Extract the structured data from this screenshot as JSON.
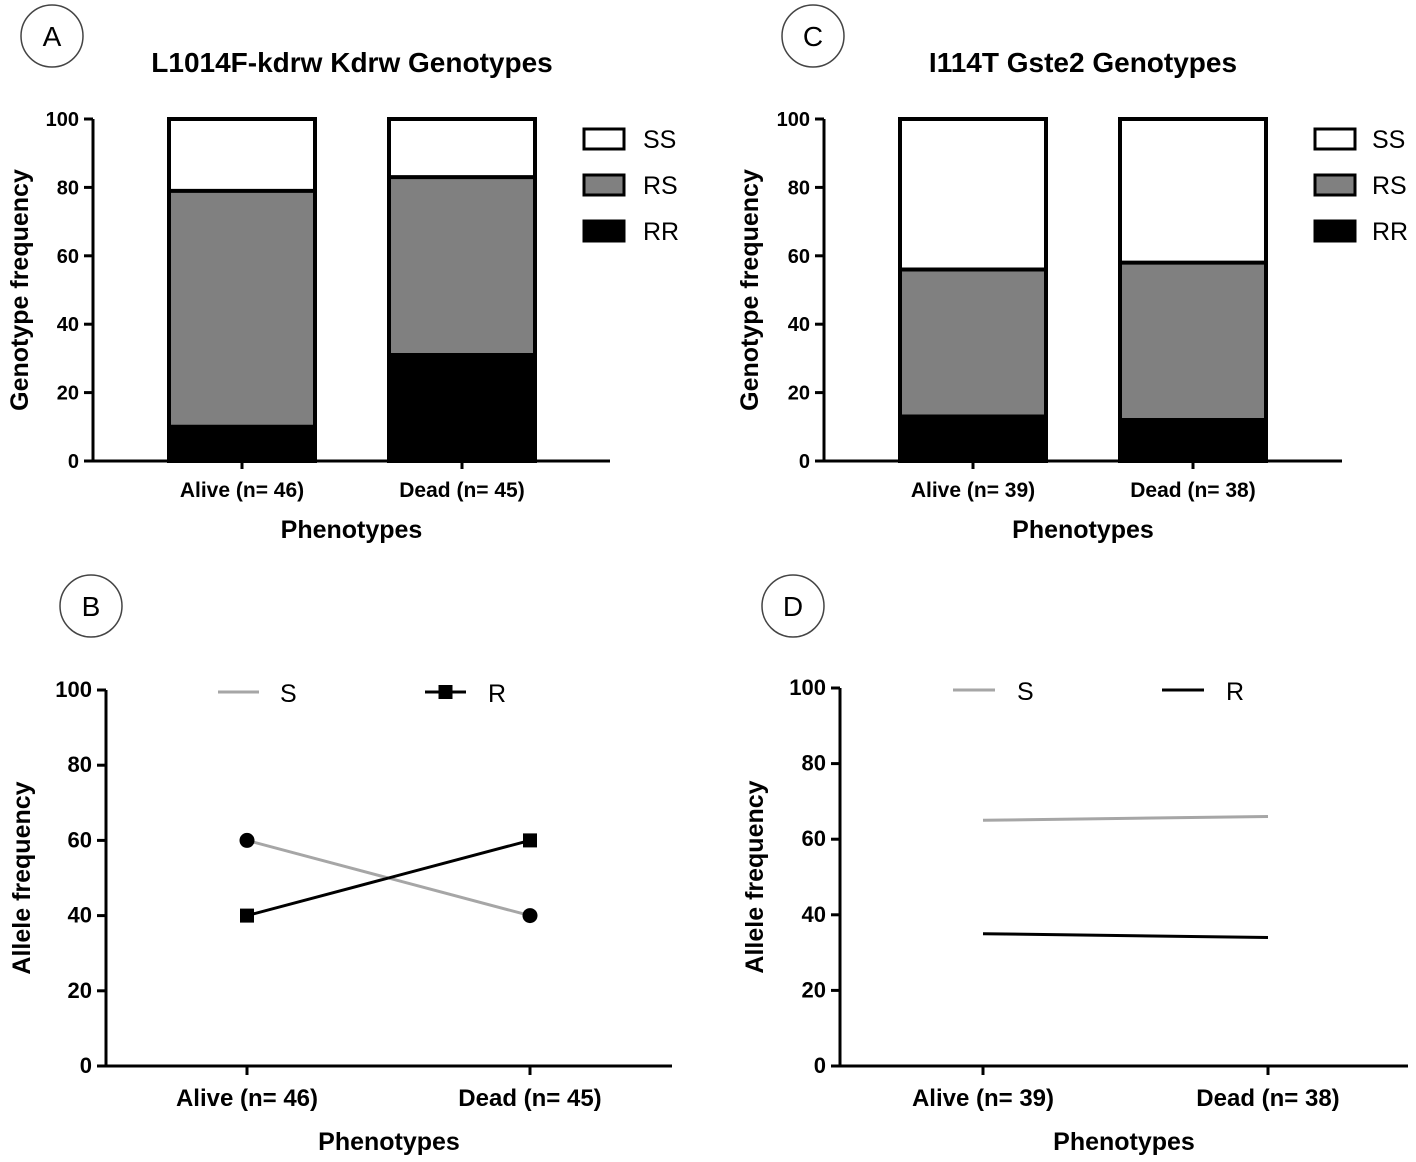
{
  "chart_data": [
    {
      "panel": "A",
      "type": "bar",
      "stacked": true,
      "title": "L1014F-kdrw Kdrw Genotypes",
      "xlabel": "Phenotypes",
      "ylabel": "Genotype frequency",
      "ylim": [
        0,
        100
      ],
      "yticks": [
        0,
        20,
        40,
        60,
        80,
        100
      ],
      "categories": [
        "Alive (n= 46)",
        "Dead  (n= 45)"
      ],
      "series": [
        {
          "name": "RR",
          "color": "#000000",
          "values": [
            10,
            31
          ]
        },
        {
          "name": "RS",
          "color": "#808080",
          "values": [
            69,
            52
          ]
        },
        {
          "name": "SS",
          "color": "#ffffff",
          "values": [
            21,
            17
          ]
        }
      ],
      "legend_order": [
        "SS",
        "RS",
        "RR"
      ],
      "legend_position": "top-right"
    },
    {
      "panel": "B",
      "type": "line",
      "xlabel": "Phenotypes",
      "ylabel": "Allele frequency",
      "ylim": [
        0,
        100
      ],
      "yticks": [
        0,
        20,
        40,
        60,
        80,
        100
      ],
      "categories": [
        "Alive (n= 46)",
        "Dead  (n= 45)"
      ],
      "series": [
        {
          "name": "S",
          "color": "#a6a6a6",
          "marker": "circle",
          "values": [
            60,
            40
          ]
        },
        {
          "name": "R",
          "color": "#000000",
          "marker": "square",
          "values": [
            40,
            60
          ]
        }
      ],
      "legend_position": "top"
    },
    {
      "panel": "C",
      "type": "bar",
      "stacked": true,
      "title": "I114T Gste2 Genotypes",
      "xlabel": "Phenotypes",
      "ylabel": "Genotype frequency",
      "ylim": [
        0,
        100
      ],
      "yticks": [
        0,
        20,
        40,
        60,
        80,
        100
      ],
      "categories": [
        "Alive (n= 39)",
        "Dead  (n= 38)"
      ],
      "series": [
        {
          "name": "RR",
          "color": "#000000",
          "values": [
            13,
            12
          ]
        },
        {
          "name": "RS",
          "color": "#808080",
          "values": [
            43,
            46
          ]
        },
        {
          "name": "SS",
          "color": "#ffffff",
          "values": [
            44,
            42
          ]
        }
      ],
      "legend_order": [
        "SS",
        "RS",
        "RR"
      ],
      "legend_position": "top-right"
    },
    {
      "panel": "D",
      "type": "line",
      "xlabel": "Phenotypes",
      "ylabel": "Allele frequency",
      "ylim": [
        0,
        100
      ],
      "yticks": [
        0,
        20,
        40,
        60,
        80,
        100
      ],
      "categories": [
        "Alive (n= 39)",
        "Dead  (n= 38)"
      ],
      "series": [
        {
          "name": "S",
          "color": "#a6a6a6",
          "marker": "none",
          "values": [
            65,
            66
          ]
        },
        {
          "name": "R",
          "color": "#000000",
          "marker": "none",
          "values": [
            35,
            34
          ]
        }
      ],
      "legend_position": "top"
    }
  ]
}
